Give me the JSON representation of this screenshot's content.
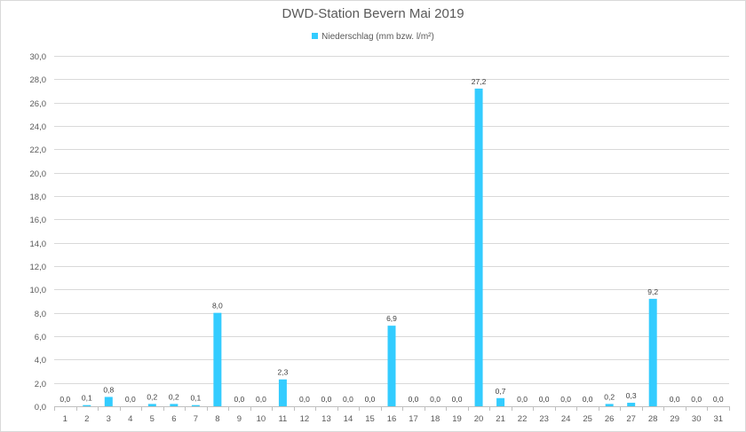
{
  "chart_data": {
    "type": "bar",
    "title": "DWD-Station Bevern Mai 2019",
    "xlabel": "",
    "ylabel": "",
    "ylim": [
      0,
      30
    ],
    "ytick_step": 2,
    "ytick_labels": [
      "0,0",
      "2,0",
      "4,0",
      "6,0",
      "8,0",
      "10,0",
      "12,0",
      "14,0",
      "16,0",
      "18,0",
      "20,0",
      "22,0",
      "24,0",
      "26,0",
      "28,0",
      "30,0"
    ],
    "grid": true,
    "legend_position": "top-center",
    "categories": [
      "1",
      "2",
      "3",
      "4",
      "5",
      "6",
      "7",
      "8",
      "9",
      "10",
      "11",
      "12",
      "13",
      "14",
      "15",
      "16",
      "17",
      "18",
      "19",
      "20",
      "21",
      "22",
      "23",
      "24",
      "25",
      "26",
      "27",
      "28",
      "29",
      "30",
      "31"
    ],
    "series": [
      {
        "name": "Niederschlag (mm bzw. l/m²)",
        "color": "#33ccff",
        "values": [
          0.0,
          0.1,
          0.8,
          0.0,
          0.2,
          0.2,
          0.1,
          8.0,
          0.0,
          0.0,
          2.3,
          0.0,
          0.0,
          0.0,
          0.0,
          6.9,
          0.0,
          0.0,
          0.0,
          27.2,
          0.7,
          0.0,
          0.0,
          0.0,
          0.0,
          0.2,
          0.3,
          9.2,
          0.0,
          0.0,
          0.0
        ],
        "labels": [
          "0,0",
          "0,1",
          "0,8",
          "0,0",
          "0,2",
          "0,2",
          "0,1",
          "8,0",
          "0,0",
          "0,0",
          "2,3",
          "0,0",
          "0,0",
          "0,0",
          "0,0",
          "6,9",
          "0,0",
          "0,0",
          "0,0",
          "27,2",
          "0,7",
          "0,0",
          "0,0",
          "0,0",
          "0,0",
          "0,2",
          "0,3",
          "9,2",
          "0,0",
          "0,0",
          "0,0"
        ]
      }
    ]
  },
  "colors": {
    "grid": "#d9d9d9",
    "axis": "#bfbfbf",
    "text": "#595959"
  }
}
